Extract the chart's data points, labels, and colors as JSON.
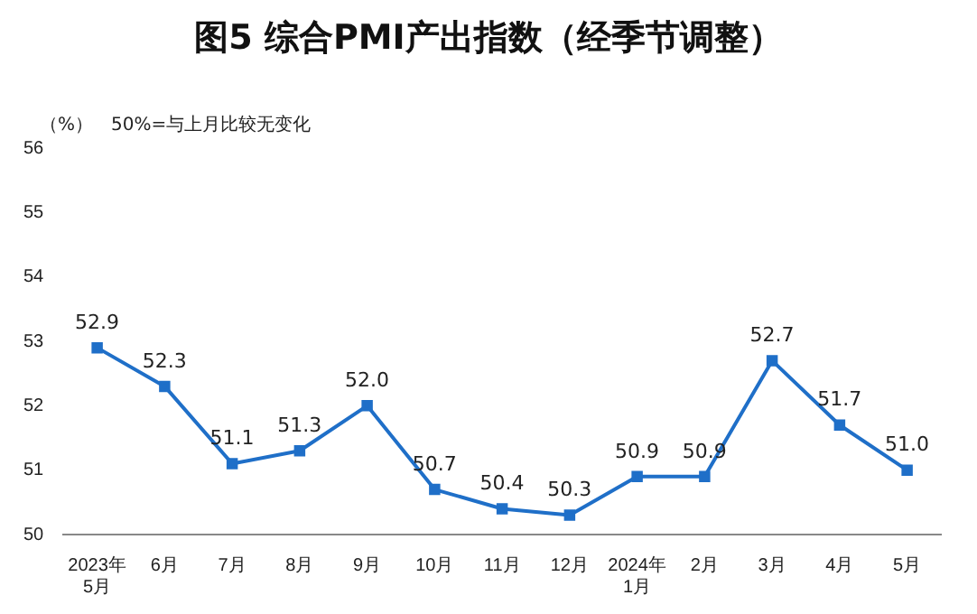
{
  "chart_data": {
    "type": "line",
    "title": "图5  综合PMI产出指数（经季节调整）",
    "ylabel": "（%）",
    "annotations": [
      "50%=与上月比较无变化"
    ],
    "categories": [
      "2023年\n5月",
      "6月",
      "7月",
      "8月",
      "9月",
      "10月",
      "11月",
      "12月",
      "2024年\n1月",
      "2月",
      "3月",
      "4月",
      "5月"
    ],
    "series": [
      {
        "color": "#1f6fc8",
        "values": [
          52.9,
          52.3,
          51.1,
          51.3,
          52.0,
          50.7,
          50.4,
          50.3,
          50.9,
          50.9,
          52.7,
          51.7,
          51.0
        ],
        "value_labels": [
          "52.9",
          "52.3",
          "51.1",
          "51.3",
          "52.0",
          "50.7",
          "50.4",
          "50.3",
          "50.9",
          "50.9",
          "52.7",
          "51.7",
          "51.0"
        ]
      }
    ],
    "ylim": [
      50,
      56
    ],
    "yticks": [
      50,
      51,
      52,
      53,
      54,
      55,
      56
    ],
    "grid": false,
    "legend": false,
    "marker": "square",
    "line_style": "solid"
  }
}
